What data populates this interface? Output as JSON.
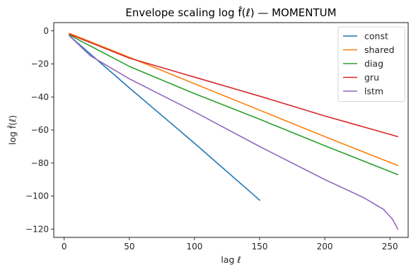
{
  "chart_data": {
    "type": "line",
    "title": "Envelope scaling log f̂(ℓ) — MOMENTUM",
    "xlabel": "lag ℓ",
    "ylabel": "log f̂(ℓ)",
    "xlim": [
      -8,
      264
    ],
    "ylim": [
      -125,
      5
    ],
    "xticks": [
      0,
      50,
      100,
      150,
      200,
      250
    ],
    "yticks": [
      0,
      -20,
      -40,
      -60,
      -80,
      -100,
      -120
    ],
    "grid": false,
    "legend_position": "top-right",
    "series": [
      {
        "name": "const",
        "color": "#1f77b4",
        "x": [
          4,
          50,
          100,
          145,
          150
        ],
        "y": [
          -3,
          -34.5,
          -68,
          -99,
          -102.5
        ]
      },
      {
        "name": "shared",
        "color": "#ff7f0e",
        "x": [
          4,
          50,
          100,
          150,
          200,
          256
        ],
        "y": [
          -1.5,
          -16,
          -32,
          -48,
          -64,
          -81.5
        ]
      },
      {
        "name": "diag",
        "color": "#2ca02c",
        "x": [
          4,
          50,
          100,
          150,
          200,
          256
        ],
        "y": [
          -2.5,
          -21.5,
          -38,
          -53.5,
          -69.5,
          -87
        ]
      },
      {
        "name": "gru",
        "color": "#d62728",
        "x": [
          4,
          50,
          100,
          150,
          200,
          256
        ],
        "y": [
          -2,
          -16.5,
          -28,
          -39.5,
          -51.5,
          -64
        ]
      },
      {
        "name": "lstm",
        "color": "#9467bd",
        "x": [
          4,
          20,
          50,
          100,
          150,
          200,
          230,
          245,
          252,
          256
        ],
        "y": [
          -3,
          -15,
          -29,
          -49,
          -70,
          -90,
          -101,
          -108,
          -114,
          -120
        ]
      }
    ]
  }
}
